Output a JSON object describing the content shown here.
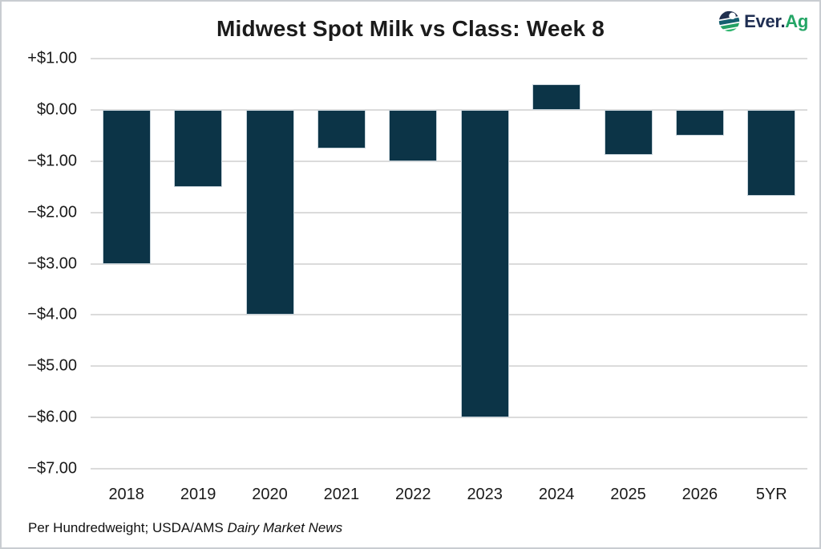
{
  "header": {
    "title": "Midwest Spot Milk vs Class: Week 8"
  },
  "logo": {
    "prefix": "Ever.",
    "suffix": "Ag"
  },
  "footnote": {
    "plain": "Per Hundredweight; USDA/AMS ",
    "italic": "Dairy Market News"
  },
  "colors": {
    "bar": "#0C3447",
    "bar_border": "#C7D3DA",
    "gridline": "#DBDBDB",
    "text": "#1A1A1A",
    "logo_navy": "#1F2E52",
    "logo_green": "#23A565",
    "frame": "#C9CDD1",
    "background": "#FFFFFF"
  },
  "chart_data": {
    "type": "bar",
    "title": "Midwest Spot Milk vs Class: Week 8",
    "categories": [
      "2018",
      "2019",
      "2020",
      "2021",
      "2022",
      "2023",
      "2024",
      "2025",
      "2026",
      "5YR"
    ],
    "values": [
      -3.0,
      -1.5,
      -4.0,
      -0.75,
      -1.0,
      -6.0,
      0.5,
      -0.88,
      -0.5,
      -1.67
    ],
    "xlabel": "",
    "ylabel": "",
    "ylim": [
      -7,
      1
    ],
    "yticks": [
      {
        "value": 1,
        "label": "+$1.00"
      },
      {
        "value": 0,
        "label": "$0.00"
      },
      {
        "value": -1,
        "label": "−$1.00"
      },
      {
        "value": -2,
        "label": "−$2.00"
      },
      {
        "value": -3,
        "label": "−$3.00"
      },
      {
        "value": -4,
        "label": "−$4.00"
      },
      {
        "value": -5,
        "label": "−$5.00"
      },
      {
        "value": -6,
        "label": "−$6.00"
      },
      {
        "value": -7,
        "label": "−$7.00"
      }
    ],
    "grid": "horizontal",
    "legend": "none",
    "bar_color": "#0C3447",
    "footnote": "Per Hundredweight; USDA/AMS Dairy Market News"
  }
}
